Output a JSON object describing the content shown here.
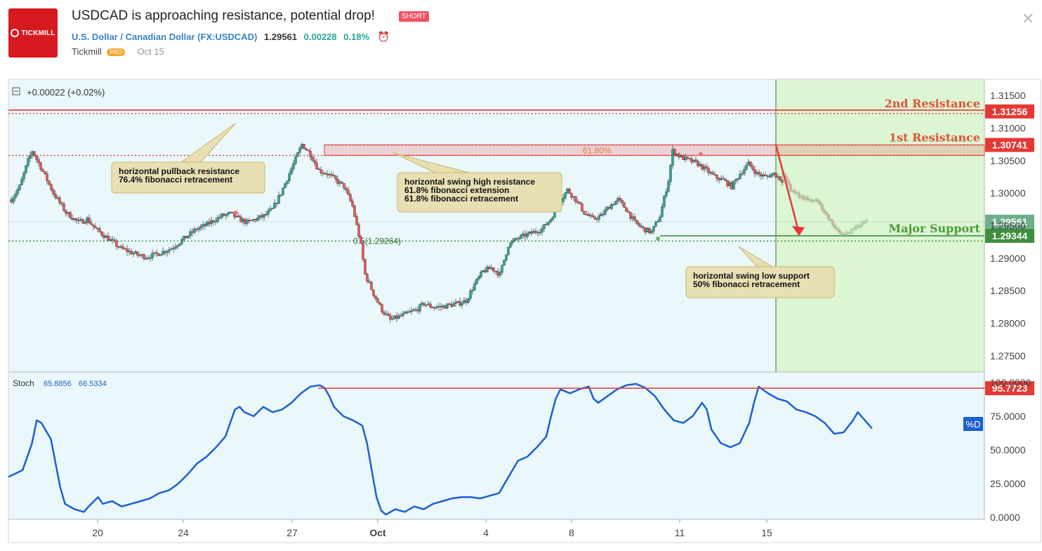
{
  "header": {
    "logo_text": "TICKMILL",
    "title": "USDCAD is approaching resistance, potential drop!",
    "badge": "SHORT",
    "symbol_name": "U.S. Dollar / Canadian Dollar",
    "symbol_code": "(FX:USDCAD)",
    "price": "1.29561",
    "change": "0.00228",
    "change_pct": "0.18%",
    "author": "Tickmill",
    "author_badge": "PRO",
    "date": "Oct 15"
  },
  "colors": {
    "resistance": "#e53935",
    "support": "#3f8f3f",
    "candle_up": "#26a69a",
    "candle_down": "#ef5350",
    "stoch": "#1e5fd0",
    "forecast_bg": "#dcf5d2",
    "chart_bg": "#eaf7fb"
  },
  "chart_data": {
    "type": "candlestick",
    "symbol": "USDCAD",
    "legend_change": "+0.00022 (+0.02%)",
    "y_axis": {
      "ylim": [
        1.2725,
        1.3175
      ],
      "ticks": [
        "1.31500",
        "1.31000",
        "1.30500",
        "1.30000",
        "1.29500",
        "1.29000",
        "1.28500",
        "1.28000",
        "1.27500"
      ]
    },
    "x_ticks": [
      "20",
      "24",
      "27",
      "Oct",
      "4",
      "8",
      "11",
      "15"
    ],
    "levels": [
      {
        "name": "2nd Resistance",
        "value": "1.31256"
      },
      {
        "name": "1st Resistance",
        "value": "1.30741"
      },
      {
        "name": "Major Support",
        "value": "1.29344"
      }
    ],
    "current_price": "1.29561",
    "fib_labels": [
      "61.80%",
      "0.5(1.29264)"
    ],
    "annotations": [
      {
        "lines": [
          "horizontal pullback resistance",
          "76.4% fibonacci retracement"
        ]
      },
      {
        "lines": [
          "horizontal swing high resistance",
          "61.8% fibonacci extension",
          "61.8% fibonacci retracement"
        ]
      },
      {
        "lines": [
          "horizontal swing low support",
          "50% fibonacci retracement"
        ]
      }
    ],
    "price_path": [
      [
        0,
        1.299
      ],
      [
        2,
        1.301
      ],
      [
        4,
        1.305
      ],
      [
        5,
        1.3065
      ],
      [
        7,
        1.304
      ],
      [
        10,
        1.3
      ],
      [
        13,
        1.297
      ],
      [
        16,
        1.2955
      ],
      [
        18,
        1.296
      ],
      [
        20,
        1.2945
      ],
      [
        22,
        1.2935
      ],
      [
        24,
        1.2925
      ],
      [
        26,
        1.2915
      ],
      [
        28,
        1.291
      ],
      [
        30,
        1.2905
      ],
      [
        32,
        1.2902
      ],
      [
        34,
        1.2905
      ],
      [
        36,
        1.291
      ],
      [
        38,
        1.2915
      ],
      [
        40,
        1.2925
      ],
      [
        42,
        1.2935
      ],
      [
        44,
        1.2945
      ],
      [
        46,
        1.295
      ],
      [
        48,
        1.2958
      ],
      [
        50,
        1.2965
      ],
      [
        52,
        1.2968
      ],
      [
        54,
        1.296
      ],
      [
        56,
        1.2955
      ],
      [
        58,
        1.296
      ],
      [
        60,
        1.2965
      ],
      [
        62,
        1.2975
      ],
      [
        64,
        1.3
      ],
      [
        66,
        1.303
      ],
      [
        68,
        1.306
      ],
      [
        69,
        1.3075
      ],
      [
        71,
        1.306
      ],
      [
        73,
        1.3035
      ],
      [
        75,
        1.303
      ],
      [
        77,
        1.302
      ],
      [
        79,
        1.301
      ],
      [
        81,
        1.298
      ],
      [
        83,
        1.292
      ],
      [
        84,
        1.2875
      ],
      [
        86,
        1.2845
      ],
      [
        88,
        1.282
      ],
      [
        90,
        1.2805
      ],
      [
        92,
        1.281
      ],
      [
        94,
        1.2815
      ],
      [
        96,
        1.282
      ],
      [
        98,
        1.283
      ],
      [
        100,
        1.2825
      ],
      [
        102,
        1.2825
      ],
      [
        104,
        1.2828
      ],
      [
        106,
        1.283
      ],
      [
        108,
        1.2835
      ],
      [
        110,
        1.286
      ],
      [
        112,
        1.288
      ],
      [
        114,
        1.2885
      ],
      [
        116,
        1.2875
      ],
      [
        118,
        1.292
      ],
      [
        120,
        1.293
      ],
      [
        122,
        1.2935
      ],
      [
        124,
        1.294
      ],
      [
        126,
        1.2945
      ],
      [
        128,
        1.296
      ],
      [
        130,
        1.2985
      ],
      [
        132,
        1.3005
      ],
      [
        134,
        1.299
      ],
      [
        136,
        1.297
      ],
      [
        138,
        1.296
      ],
      [
        140,
        1.2965
      ],
      [
        142,
        1.298
      ],
      [
        144,
        1.299
      ],
      [
        146,
        1.2975
      ],
      [
        148,
        1.2955
      ],
      [
        150,
        1.2945
      ],
      [
        152,
        1.294
      ],
      [
        154,
        1.2965
      ],
      [
        156,
        1.302
      ],
      [
        157,
        1.3065
      ],
      [
        159,
        1.3055
      ],
      [
        161,
        1.305
      ],
      [
        163,
        1.3045
      ],
      [
        165,
        1.3035
      ],
      [
        167,
        1.3025
      ],
      [
        169,
        1.302
      ],
      [
        171,
        1.301
      ],
      [
        173,
        1.303
      ],
      [
        175,
        1.3045
      ],
      [
        177,
        1.303
      ],
      [
        179,
        1.3025
      ],
      [
        181,
        1.303
      ],
      [
        183,
        1.302
      ]
    ],
    "projection_path": [
      [
        183,
        1.303
      ],
      [
        185,
        1.3005
      ],
      [
        187,
        1.2995
      ],
      [
        189,
        1.299
      ],
      [
        191,
        1.299
      ],
      [
        193,
        1.297
      ],
      [
        195,
        1.295
      ],
      [
        197,
        1.2938
      ],
      [
        199,
        1.294
      ],
      [
        201,
        1.295
      ],
      [
        203,
        1.2958
      ]
    ],
    "stoch": {
      "label": "Stoch",
      "k_value": "65.8856",
      "d_value": "66.5334",
      "series_tag": "%D",
      "level": "95.7723",
      "ylim": [
        0,
        100
      ],
      "ticks": [
        "100.0000",
        "75.0000",
        "50.0000",
        "25.0000",
        "0.0000"
      ],
      "values": [
        [
          0,
          30
        ],
        [
          3,
          35
        ],
        [
          5,
          55
        ],
        [
          6,
          72
        ],
        [
          7,
          70
        ],
        [
          9,
          58
        ],
        [
          10,
          40
        ],
        [
          11,
          22
        ],
        [
          12,
          10
        ],
        [
          14,
          6
        ],
        [
          16,
          4
        ],
        [
          17,
          8
        ],
        [
          19,
          15
        ],
        [
          20,
          10
        ],
        [
          22,
          12
        ],
        [
          24,
          8
        ],
        [
          26,
          10
        ],
        [
          28,
          12
        ],
        [
          30,
          14
        ],
        [
          32,
          18
        ],
        [
          34,
          20
        ],
        [
          36,
          25
        ],
        [
          38,
          32
        ],
        [
          40,
          40
        ],
        [
          42,
          45
        ],
        [
          44,
          52
        ],
        [
          46,
          60
        ],
        [
          47,
          70
        ],
        [
          48,
          80
        ],
        [
          49,
          82
        ],
        [
          50,
          78
        ],
        [
          52,
          75
        ],
        [
          54,
          82
        ],
        [
          56,
          78
        ],
        [
          58,
          80
        ],
        [
          60,
          85
        ],
        [
          62,
          92
        ],
        [
          64,
          97
        ],
        [
          66,
          98
        ],
        [
          67,
          96
        ],
        [
          68,
          90
        ],
        [
          69,
          82
        ],
        [
          71,
          75
        ],
        [
          73,
          72
        ],
        [
          75,
          68
        ],
        [
          76,
          55
        ],
        [
          77,
          35
        ],
        [
          78,
          15
        ],
        [
          79,
          5
        ],
        [
          80,
          2
        ],
        [
          82,
          6
        ],
        [
          84,
          4
        ],
        [
          86,
          8
        ],
        [
          88,
          6
        ],
        [
          90,
          10
        ],
        [
          92,
          12
        ],
        [
          94,
          14
        ],
        [
          96,
          15
        ],
        [
          98,
          15
        ],
        [
          100,
          14
        ],
        [
          102,
          16
        ],
        [
          104,
          18
        ],
        [
          106,
          30
        ],
        [
          108,
          42
        ],
        [
          110,
          45
        ],
        [
          112,
          52
        ],
        [
          114,
          60
        ],
        [
          115,
          75
        ],
        [
          116,
          88
        ],
        [
          117,
          95
        ],
        [
          119,
          92
        ],
        [
          121,
          95
        ],
        [
          123,
          97
        ],
        [
          124,
          88
        ],
        [
          125,
          85
        ],
        [
          127,
          90
        ],
        [
          129,
          95
        ],
        [
          131,
          98
        ],
        [
          133,
          99
        ],
        [
          135,
          96
        ],
        [
          137,
          90
        ],
        [
          139,
          80
        ],
        [
          141,
          72
        ],
        [
          143,
          70
        ],
        [
          145,
          75
        ],
        [
          147,
          85
        ],
        [
          148,
          80
        ],
        [
          149,
          65
        ],
        [
          151,
          55
        ],
        [
          153,
          52
        ],
        [
          155,
          55
        ],
        [
          157,
          70
        ],
        [
          158,
          85
        ],
        [
          159,
          97
        ],
        [
          161,
          92
        ],
        [
          163,
          88
        ],
        [
          165,
          86
        ],
        [
          167,
          80
        ],
        [
          169,
          78
        ],
        [
          171,
          75
        ],
        [
          173,
          70
        ],
        [
          175,
          62
        ],
        [
          177,
          63
        ],
        [
          179,
          72
        ],
        [
          180,
          78
        ],
        [
          182,
          70
        ],
        [
          183,
          66
        ]
      ]
    }
  }
}
